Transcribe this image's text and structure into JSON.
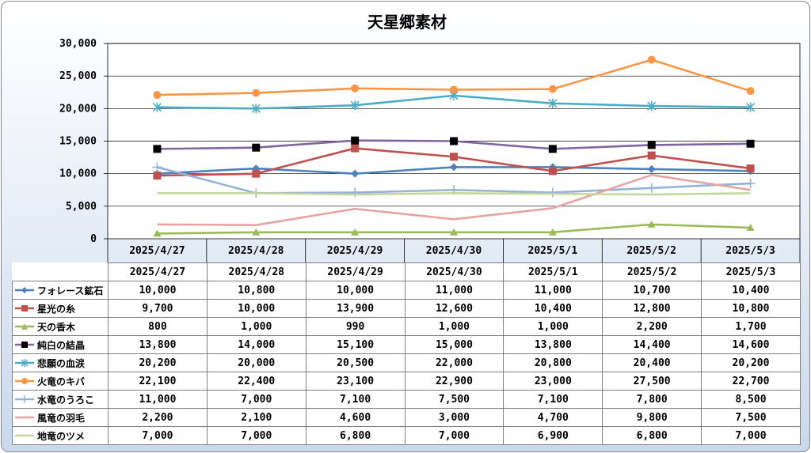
{
  "chart_data": {
    "type": "line",
    "title": "天星郷素材",
    "categories": [
      "2025/4/27",
      "2025/4/28",
      "2025/4/29",
      "2025/4/30",
      "2025/5/1",
      "2025/5/2",
      "2025/5/3"
    ],
    "y_ticks": [
      "0",
      "5,000",
      "10,000",
      "15,000",
      "20,000",
      "25,000",
      "30,000"
    ],
    "ylim": [
      0,
      30000
    ],
    "grid": true,
    "legend": "data-table",
    "series": [
      {
        "name": "フォレース鉱石",
        "color": "#4f81bd",
        "marker": "diamond",
        "values": [
          10000,
          10800,
          10000,
          11000,
          11000,
          10700,
          10400
        ],
        "labels": [
          "10,000",
          "10,800",
          "10,000",
          "11,000",
          "11,000",
          "10,700",
          "10,400"
        ]
      },
      {
        "name": "星光の糸",
        "color": "#c0504d",
        "marker": "square",
        "values": [
          9700,
          10000,
          13900,
          12600,
          10400,
          12800,
          10800
        ],
        "labels": [
          "9,700",
          "10,000",
          "13,900",
          "12,600",
          "10,400",
          "12,800",
          "10,800"
        ]
      },
      {
        "name": "天の香木",
        "color": "#9bbb59",
        "marker": "triangle",
        "values": [
          800,
          1000,
          990,
          1000,
          1000,
          2200,
          1700
        ],
        "labels": [
          "800",
          "1,000",
          "990",
          "1,000",
          "1,000",
          "2,200",
          "1,700"
        ]
      },
      {
        "name": "純白の結晶",
        "color": "#8064a2",
        "marker": "blacksquare",
        "values": [
          13800,
          14000,
          15100,
          15000,
          13800,
          14400,
          14600
        ],
        "labels": [
          "13,800",
          "14,000",
          "15,100",
          "15,000",
          "13,800",
          "14,400",
          "14,600"
        ]
      },
      {
        "name": "悲願の血涙",
        "color": "#4bacc6",
        "marker": "star",
        "values": [
          20200,
          20000,
          20500,
          22000,
          20800,
          20400,
          20200
        ],
        "labels": [
          "20,200",
          "20,000",
          "20,500",
          "22,000",
          "20,800",
          "20,400",
          "20,200"
        ]
      },
      {
        "name": "火竜のキバ",
        "color": "#f79646",
        "marker": "circle",
        "values": [
          22100,
          22400,
          23100,
          22900,
          23000,
          27500,
          22700
        ],
        "labels": [
          "22,100",
          "22,400",
          "23,100",
          "22,900",
          "23,000",
          "27,500",
          "22,700"
        ]
      },
      {
        "name": "水竜のうろこ",
        "color": "#95b3d7",
        "marker": "plus",
        "values": [
          11000,
          7000,
          7100,
          7500,
          7100,
          7800,
          8500
        ],
        "labels": [
          "11,000",
          "7,000",
          "7,100",
          "7,500",
          "7,100",
          "7,800",
          "8,500"
        ]
      },
      {
        "name": "風竜の羽毛",
        "color": "#e6a3a1",
        "marker": "none",
        "values": [
          2200,
          2100,
          4600,
          3000,
          4700,
          9800,
          7500
        ],
        "labels": [
          "2,200",
          "2,100",
          "4,600",
          "3,000",
          "4,700",
          "9,800",
          "7,500"
        ]
      },
      {
        "name": "地竜のツメ",
        "color": "#c3d69b",
        "marker": "none",
        "values": [
          7000,
          7000,
          6800,
          7000,
          6900,
          6800,
          7000
        ],
        "labels": [
          "7,000",
          "7,000",
          "6,800",
          "7,000",
          "6,900",
          "6,800",
          "7,000"
        ]
      }
    ]
  }
}
